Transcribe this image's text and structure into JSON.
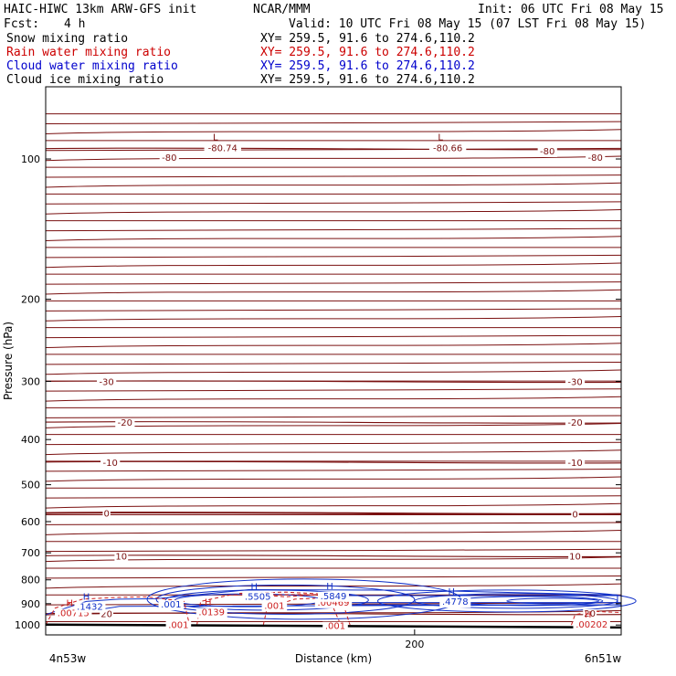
{
  "header": {
    "model_title": "HAIC-HIWC 13km ARW-GFS init",
    "org": "NCAR/MMM",
    "init": "Init: 06 UTC Fri 08 May 15",
    "fcst_label": "Fcst:",
    "fcst_value": "4 h",
    "valid": "Valid: 10 UTC Fri 08 May 15 (07 LST Fri 08 May 15)"
  },
  "fields": [
    {
      "name": "Snow mixing ratio",
      "xy": "XY= 259.5, 91.6 to 274.6,110.2",
      "color": "#000000"
    },
    {
      "name": "Rain water mixing ratio",
      "xy": "XY= 259.5, 91.6 to 274.6,110.2",
      "color": "#cc0000"
    },
    {
      "name": "Cloud water mixing ratio",
      "xy": "XY= 259.5, 91.6 to 274.6,110.2",
      "color": "#0000cc"
    },
    {
      "name": "Cloud ice mixing ratio",
      "xy": "XY= 259.5, 91.6 to 274.6,110.2",
      "color": "#000000"
    }
  ],
  "chart_data": {
    "type": "cross-section",
    "ylabel": "Pressure (hPa)",
    "xlabel": "Distance (km)",
    "x_start_label": "4n53w",
    "x_end_label": "6n51w",
    "ylim": [
      1050,
      70
    ],
    "xlim": [
      0,
      312
    ],
    "y_scale": "log",
    "y_ticks": [
      100,
      200,
      300,
      400,
      500,
      600,
      700,
      800,
      900,
      1000
    ],
    "x_ticks": [
      200
    ],
    "temperature_color": "#7a1010",
    "temperature_isotherms": [
      {
        "label": "-80",
        "p": 95
      },
      {
        "label": "-30",
        "p": 300
      },
      {
        "label": "-20",
        "p": 367
      },
      {
        "label": "-10",
        "p": 447
      },
      {
        "label": "0",
        "p": 575
      },
      {
        "label": "10",
        "p": 710
      },
      {
        "label": "20",
        "p": 945
      }
    ],
    "temperature_labels": [
      {
        "text": "-80",
        "x": 67,
        "p": 99
      },
      {
        "text": "-80",
        "x": 272,
        "p": 96
      },
      {
        "text": "-80",
        "x": 298,
        "p": 99
      },
      {
        "text": "-30",
        "x": 33,
        "p": 300
      },
      {
        "text": "-30",
        "x": 287,
        "p": 300
      },
      {
        "text": "-20",
        "x": 43,
        "p": 367
      },
      {
        "text": "-20",
        "x": 287,
        "p": 367
      },
      {
        "text": "-10",
        "x": 35,
        "p": 447
      },
      {
        "text": "-10",
        "x": 287,
        "p": 447
      },
      {
        "text": "0",
        "x": 33,
        "p": 575
      },
      {
        "text": "0",
        "x": 287,
        "p": 578
      },
      {
        "text": "10",
        "x": 41,
        "p": 710
      },
      {
        "text": "10",
        "x": 287,
        "p": 710
      },
      {
        "text": "20",
        "x": 33,
        "p": 945
      },
      {
        "text": "20",
        "x": 295,
        "p": 942
      }
    ],
    "temperature_extrema": [
      {
        "mark": "L",
        "text": "-80.74",
        "x": 92,
        "p": 92
      },
      {
        "mark": "L",
        "text": "-80.66",
        "x": 214,
        "p": 92
      }
    ],
    "rain_labels": [
      {
        "mark": "H",
        "text": ".00715",
        "x": 15,
        "p": 945
      },
      {
        "mark": "H",
        "text": ".0139",
        "x": 90,
        "p": 940
      },
      {
        "mark": "",
        "text": ".001",
        "x": 72,
        "p": 1002
      },
      {
        "mark": "",
        "text": ".001",
        "x": 124,
        "p": 910
      },
      {
        "mark": "",
        "text": ".001",
        "x": 157,
        "p": 1007
      },
      {
        "mark": "",
        "text": ".00469",
        "x": 156,
        "p": 896
      },
      {
        "mark": "H",
        "text": ".00202",
        "x": 296,
        "p": 1000
      }
    ],
    "cloud_water_labels": [
      {
        "mark": "H",
        "text": ".1432",
        "x": 24,
        "p": 915
      },
      {
        "mark": "",
        "text": ".001",
        "x": 68,
        "p": 905
      },
      {
        "mark": "H",
        "text": ".5505",
        "x": 115,
        "p": 870
      },
      {
        "mark": "H",
        "text": ".5849",
        "x": 156,
        "p": 868
      },
      {
        "mark": "H",
        "text": ".4778",
        "x": 222,
        "p": 893
      }
    ],
    "terrain_surface_p": 1000
  }
}
